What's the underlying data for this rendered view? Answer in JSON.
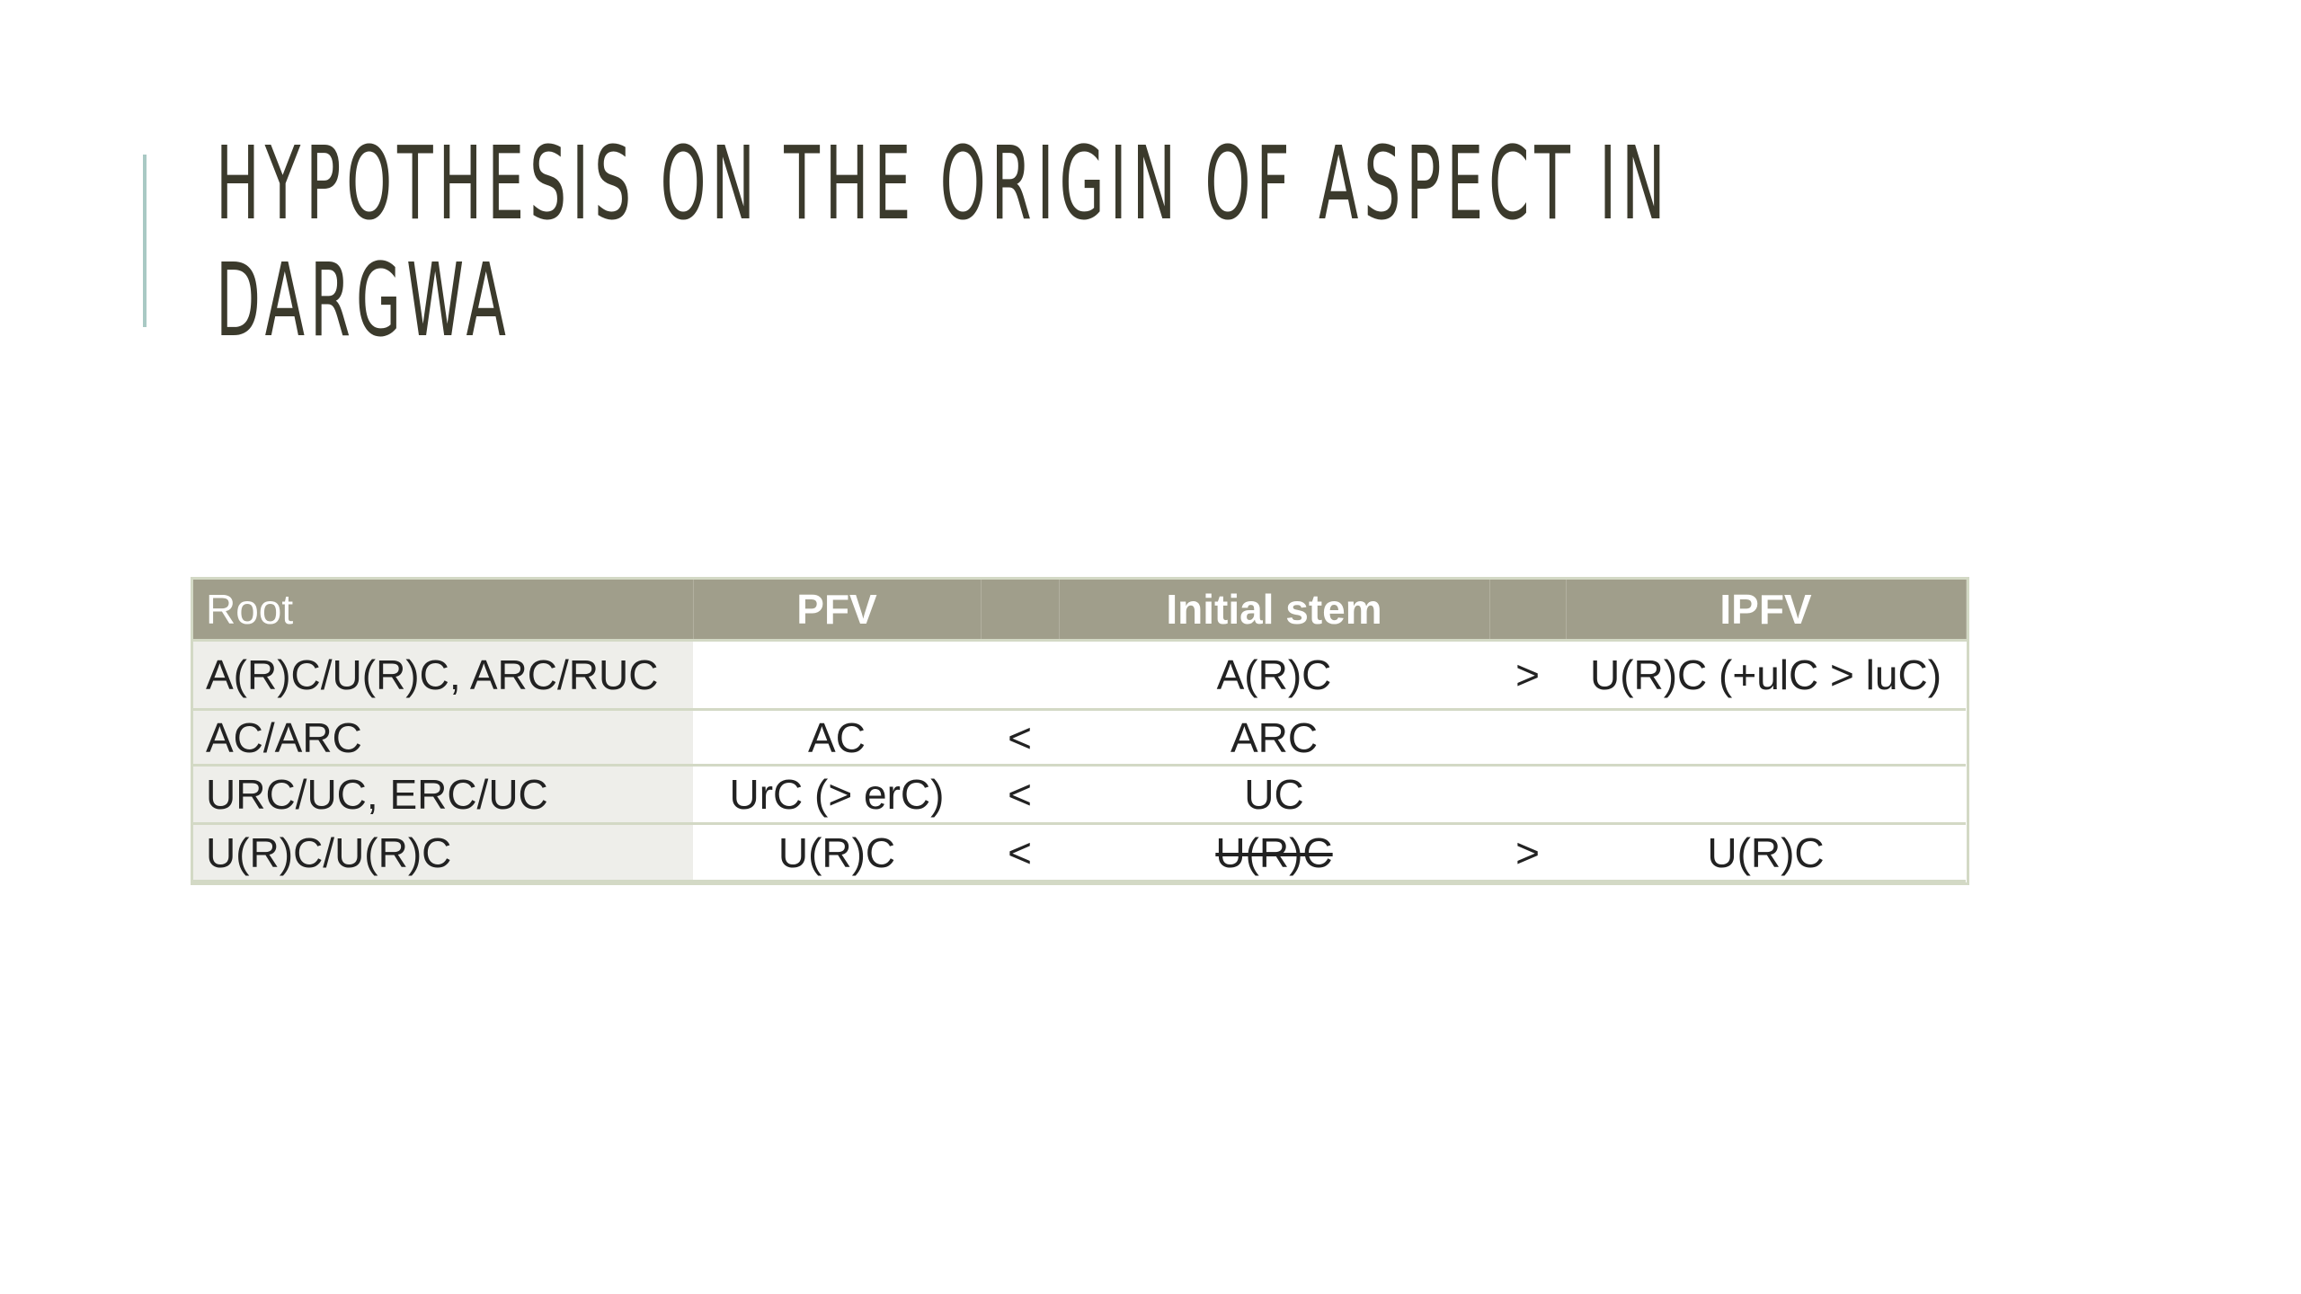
{
  "slide": {
    "title_line1": "HYPOTHESIS ON THE ORIGIN OF ASPECT IN",
    "title_line2": "DARGWA",
    "accent_color": "#a9c9c4",
    "header_color": "#a09e8b"
  },
  "table": {
    "headers": [
      "Root",
      "PFV",
      "",
      "Initial stem",
      "",
      "IPFV"
    ],
    "rows": [
      [
        "A(R)C/U(R)C, ARC/RUC",
        "",
        "",
        "A(R)C",
        ">",
        "U(R)C (+ulC > luC)"
      ],
      [
        "AC/ARC",
        "AC",
        "<",
        "ARC",
        "",
        ""
      ],
      [
        "URC/UC, ERC/UC",
        "UrC (> erC)",
        "<",
        "UC",
        "",
        ""
      ],
      [
        "U(R)C/U(R)C",
        "U(R)C",
        "<",
        "U(R)C",
        ">",
        "U(R)C"
      ]
    ],
    "struck_cell": "U(R)C"
  }
}
